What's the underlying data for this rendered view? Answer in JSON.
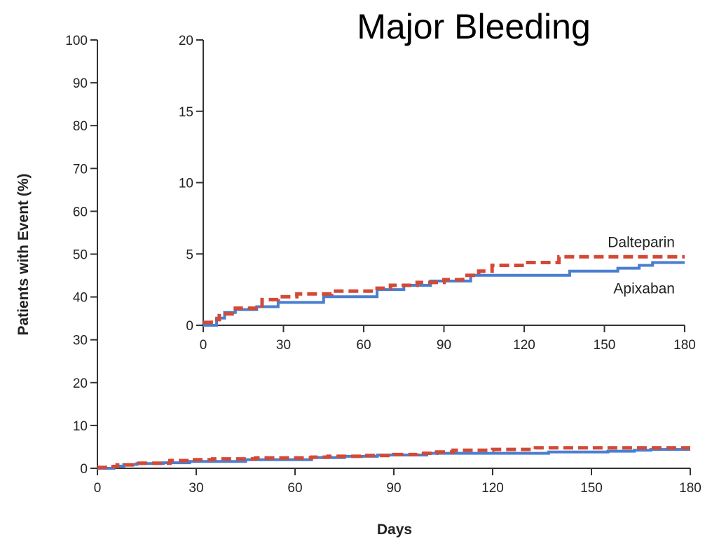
{
  "chart_data": [
    {
      "type": "line",
      "role": "main",
      "title": "Major Bleeding",
      "xlabel": "Days",
      "ylabel": "Patients with Event (%)",
      "xlim": [
        0,
        180
      ],
      "ylim": [
        0,
        100
      ],
      "xticks": [
        0,
        30,
        60,
        90,
        120,
        150,
        180
      ],
      "yticks": [
        0,
        10,
        20,
        30,
        40,
        50,
        60,
        70,
        80,
        90,
        100
      ],
      "grid": false,
      "series": [
        {
          "name": "Dalteparin",
          "color": "#d24a36",
          "style": "dashed",
          "x": [
            0,
            3,
            6,
            12,
            22,
            28,
            35,
            48,
            65,
            70,
            80,
            90,
            97,
            103,
            108,
            120,
            133,
            180
          ],
          "y": [
            0.2,
            0.4,
            0.8,
            1.2,
            1.8,
            2.0,
            2.2,
            2.4,
            2.6,
            2.8,
            3.0,
            3.2,
            3.5,
            3.8,
            4.2,
            4.4,
            4.8,
            4.8
          ]
        },
        {
          "name": "Apixaban",
          "color": "#4a7fd0",
          "style": "solid",
          "x": [
            0,
            5,
            8,
            12,
            20,
            28,
            45,
            65,
            75,
            85,
            100,
            120,
            137,
            155,
            163,
            168,
            180
          ],
          "y": [
            0,
            0.5,
            0.9,
            1.1,
            1.3,
            1.6,
            2.0,
            2.5,
            2.8,
            3.1,
            3.5,
            3.5,
            3.8,
            4.0,
            4.2,
            4.4,
            4.4
          ]
        }
      ]
    },
    {
      "type": "line",
      "role": "inset",
      "xlim": [
        0,
        180
      ],
      "ylim": [
        0,
        20
      ],
      "xticks": [
        0,
        30,
        60,
        90,
        120,
        150,
        180
      ],
      "yticks": [
        0,
        5,
        10,
        15,
        20
      ],
      "grid": false,
      "series": [
        {
          "name": "Dalteparin",
          "color": "#d24a36",
          "style": "dashed",
          "x": [
            0,
            3,
            6,
            12,
            22,
            28,
            35,
            48,
            65,
            70,
            80,
            90,
            97,
            103,
            108,
            120,
            133,
            180
          ],
          "y": [
            0.2,
            0.4,
            0.8,
            1.2,
            1.8,
            2.0,
            2.2,
            2.4,
            2.6,
            2.8,
            3.0,
            3.2,
            3.5,
            3.8,
            4.2,
            4.4,
            4.8,
            4.8
          ]
        },
        {
          "name": "Apixaban",
          "color": "#4a7fd0",
          "style": "solid",
          "x": [
            0,
            5,
            8,
            12,
            20,
            28,
            45,
            65,
            75,
            85,
            100,
            120,
            137,
            155,
            163,
            168,
            180
          ],
          "y": [
            0,
            0.5,
            0.9,
            1.1,
            1.3,
            1.6,
            2.0,
            2.5,
            2.8,
            3.1,
            3.5,
            3.5,
            3.8,
            4.0,
            4.2,
            4.4,
            4.4
          ]
        }
      ]
    }
  ]
}
